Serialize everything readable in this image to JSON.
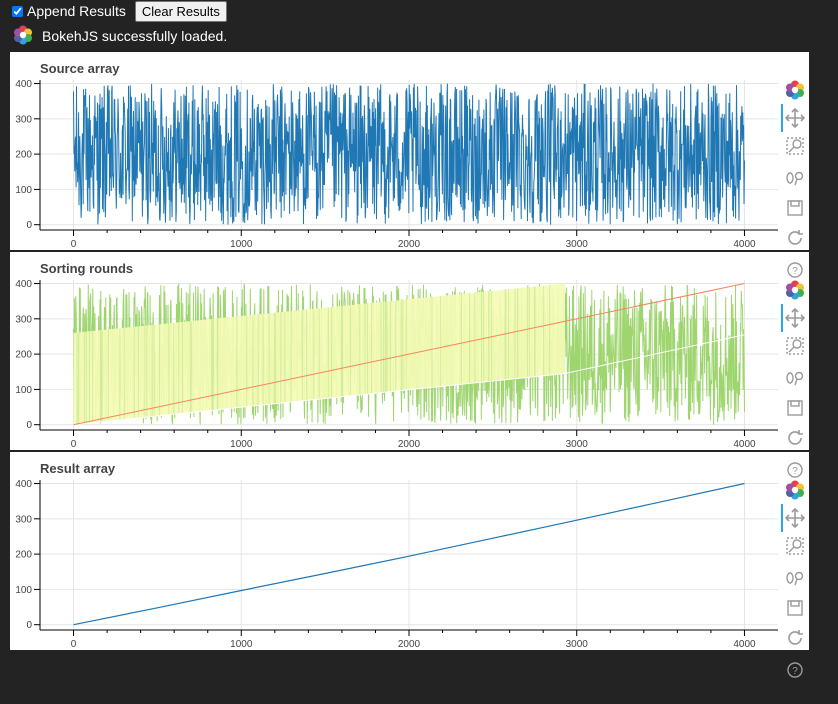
{
  "header": {
    "append_checked": true,
    "append_label": "Append Results",
    "clear_button": "Clear Results"
  },
  "status": {
    "message": "BokehJS successfully loaded."
  },
  "toolbar_tools": [
    "bokeh-logo-icon",
    "pan-icon",
    "box-zoom-icon",
    "wheel-zoom-icon",
    "save-icon",
    "reset-icon",
    "help-icon"
  ],
  "colors": {
    "source_line": "#1f77b4",
    "rounds_fill": "#9ed56e",
    "rounds_region": "#f4fbb6",
    "rounds_diag": "#f5845a",
    "result_line": "#1f77b4",
    "bokeh_active": "#26aae1"
  },
  "chart_data": [
    {
      "type": "line",
      "title": "Source array",
      "xlabel": "",
      "ylabel": "",
      "xlim": [
        -200,
        4200
      ],
      "ylim": [
        -15,
        410
      ],
      "xticks": [
        0,
        1000,
        2000,
        3000,
        4000
      ],
      "yticks": [
        0,
        100,
        200,
        300,
        400
      ],
      "grid": true,
      "series": [
        {
          "n_points": 4000,
          "min": 0,
          "max": 400,
          "pattern": "random uniform"
        }
      ]
    },
    {
      "type": "area",
      "title": "Sorting rounds",
      "xlabel": "",
      "ylabel": "",
      "xlim": [
        -200,
        4200
      ],
      "ylim": [
        -15,
        410
      ],
      "xticks": [
        0,
        1000,
        2000,
        3000,
        4000
      ],
      "yticks": [
        0,
        100,
        200,
        300,
        400
      ],
      "grid": true,
      "series": [
        {
          "kind": "sorted-diagonal",
          "x": [
            0,
            4000
          ],
          "y": [
            0,
            400
          ]
        },
        {
          "kind": "partition-region",
          "x": [
            0,
            2930
          ],
          "lower": [
            0,
            145
          ],
          "upper": [
            260,
            400
          ]
        },
        {
          "kind": "partition-lower-edge",
          "x": [
            0,
            2930,
            4000
          ],
          "y": [
            0,
            145,
            255
          ]
        }
      ]
    },
    {
      "type": "line",
      "title": "Result array",
      "xlabel": "",
      "ylabel": "",
      "xlim": [
        -200,
        4200
      ],
      "ylim": [
        -15,
        410
      ],
      "xticks": [
        0,
        1000,
        2000,
        3000,
        4000
      ],
      "yticks": [
        0,
        100,
        200,
        300,
        400
      ],
      "grid": true,
      "series": [
        {
          "x": [
            0,
            500,
            1000,
            1500,
            2000,
            2500,
            3000,
            3500,
            4000
          ],
          "y": [
            0,
            48,
            97,
            145,
            194,
            245,
            296,
            348,
            400
          ]
        }
      ]
    }
  ]
}
